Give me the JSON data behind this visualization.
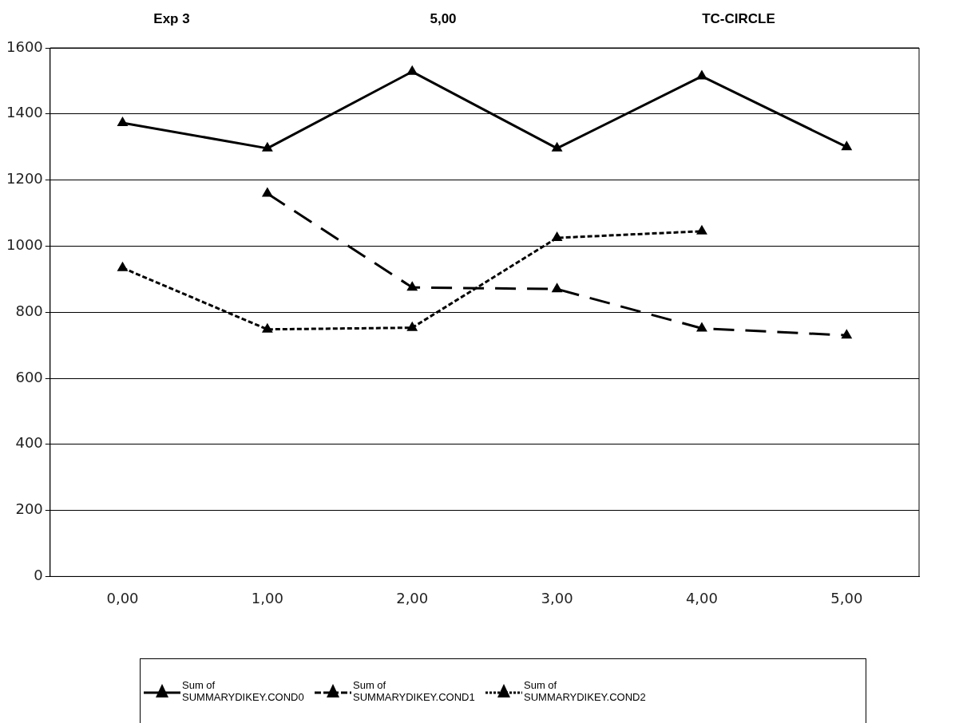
{
  "chart_data": {
    "type": "line",
    "title": "Exp 3",
    "annotations": [
      "5,00",
      "TC-CIRCLE"
    ],
    "categories": [
      "0,00",
      "1,00",
      "2,00",
      "3,00",
      "4,00",
      "5,00"
    ],
    "ylim": [
      0,
      1600
    ],
    "yticks": [
      0,
      200,
      400,
      600,
      800,
      1000,
      1200,
      1400,
      1600
    ],
    "grid": "y",
    "legend": "bottom",
    "marker": "triangle",
    "series": [
      {
        "name": "Sum of SUMMARYDIKEY.COND0",
        "color": "#000000",
        "line_style": "solid",
        "values": [
          1373,
          1296,
          1528,
          1296,
          1514,
          1300
        ]
      },
      {
        "name": "Sum of SUMMARYDIKEY.COND1",
        "color": "#000000",
        "line_style": "dashed",
        "values": [
          null,
          1159,
          875,
          870,
          751,
          730
        ]
      },
      {
        "name": "Sum of SUMMARYDIKEY.COND2",
        "color": "#000000",
        "line_style": "dotted",
        "values": [
          934,
          748,
          753,
          1025,
          1045,
          null
        ]
      }
    ]
  }
}
